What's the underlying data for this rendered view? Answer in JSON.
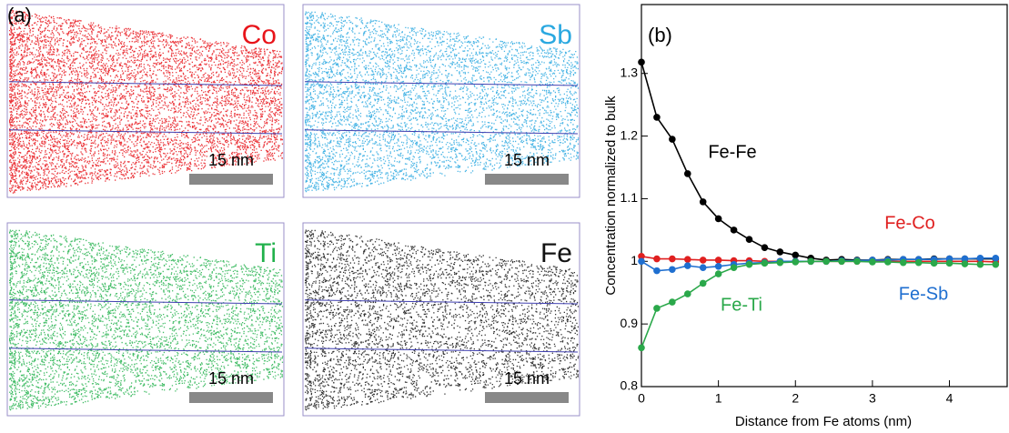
{
  "panel_a": {
    "label": "(a)",
    "maps": [
      {
        "element": "Co",
        "color": "#e8141a",
        "scale_bar": "15 nm"
      },
      {
        "element": "Sb",
        "color": "#2aa8e0",
        "scale_bar": "15 nm"
      },
      {
        "element": "Ti",
        "color": "#22b14c",
        "scale_bar": "15 nm"
      },
      {
        "element": "Fe",
        "color": "#111111",
        "scale_bar": "15 nm"
      }
    ]
  },
  "chart_data": {
    "type": "line",
    "panel_label": "(b)",
    "xlabel": "Distance from Fe atoms (nm)",
    "ylabel": "Concentration normalized to bulk",
    "x": [
      0,
      0.2,
      0.4,
      0.6,
      0.8,
      1.0,
      1.2,
      1.4,
      1.6,
      1.8,
      2.0,
      2.2,
      2.4,
      2.6,
      2.8,
      3.0,
      3.2,
      3.4,
      3.6,
      3.8,
      4.0,
      4.2,
      4.4,
      4.6
    ],
    "xlim": [
      0,
      4.75
    ],
    "xticks": [
      0,
      1,
      2,
      3,
      4
    ],
    "ylim": [
      0.8,
      1.41
    ],
    "yticks": [
      0.8,
      0.9,
      1,
      1.1,
      1.2,
      1.3
    ],
    "series": [
      {
        "name": "Fe-Fe",
        "color": "#000000",
        "values": [
          1.318,
          1.23,
          1.195,
          1.14,
          1.095,
          1.068,
          1.05,
          1.035,
          1.022,
          1.015,
          1.01,
          1.005,
          1.002,
          1.003,
          1.002,
          1.002,
          1.003,
          1.003,
          1.003,
          1.004,
          1.004,
          1.004,
          1.004,
          1.004
        ]
      },
      {
        "name": "Fe-Co",
        "color": "#e02020",
        "values": [
          1.008,
          1.004,
          1.004,
          1.003,
          1.002,
          1.002,
          1.001,
          1.001,
          1.0,
          1.0,
          1.0,
          1.0,
          1.0,
          1.0,
          1.0,
          1.0,
          1.0,
          1.0,
          1.0,
          1.0,
          1.0,
          1.0,
          1.0,
          0.999
        ]
      },
      {
        "name": "Fe-Sb",
        "color": "#1f6fd0",
        "values": [
          1.0,
          0.985,
          0.987,
          0.993,
          0.99,
          0.992,
          0.995,
          0.997,
          0.998,
          1.0,
          1.0,
          1.0,
          1.0,
          1.001,
          1.001,
          1.002,
          1.002,
          1.003,
          1.003,
          1.003,
          1.004,
          1.004,
          1.005,
          1.005
        ]
      },
      {
        "name": "Fe-Ti",
        "color": "#2aa84a",
        "values": [
          0.862,
          0.925,
          0.935,
          0.948,
          0.965,
          0.98,
          0.99,
          0.995,
          0.997,
          0.998,
          0.999,
          1.0,
          1.0,
          1.0,
          1.0,
          0.999,
          0.999,
          0.998,
          0.998,
          0.997,
          0.997,
          0.996,
          0.995,
          0.995
        ]
      }
    ]
  }
}
